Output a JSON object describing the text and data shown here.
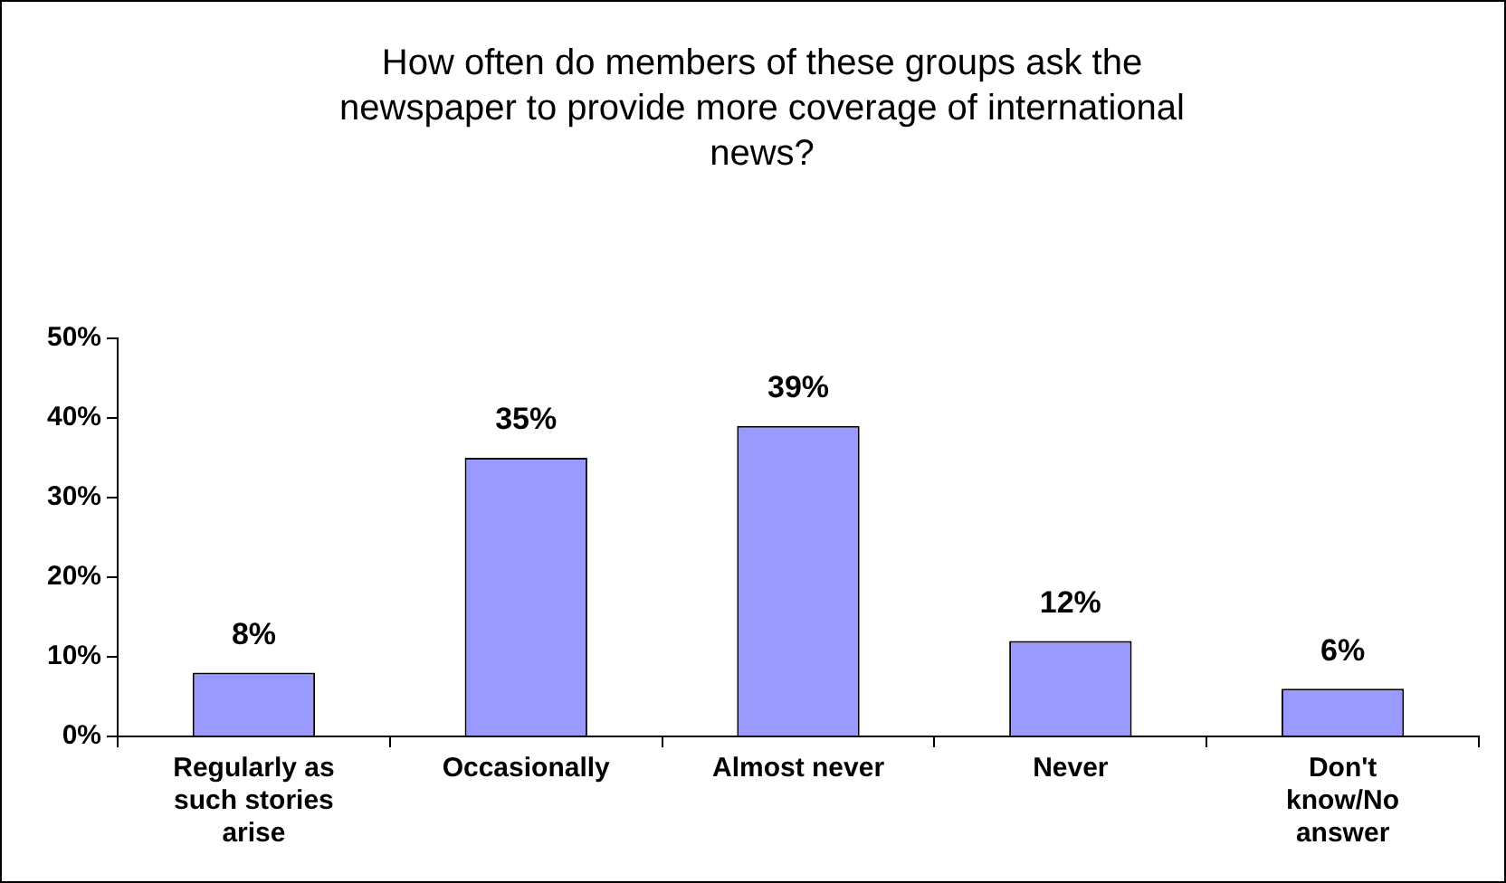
{
  "chart_data": {
    "type": "bar",
    "title": "How often do members of these groups ask the newspaper to provide more coverage of international news?",
    "categories": [
      "Regularly as such stories arise",
      "Occasionally",
      "Almost never",
      "Never",
      "Don't know/No answer"
    ],
    "values": [
      8,
      35,
      39,
      12,
      6
    ],
    "value_labels": [
      "8%",
      "35%",
      "39%",
      "12%",
      "6%"
    ],
    "color": "#9999ff",
    "ylim": [
      0,
      50
    ],
    "yticks": [
      {
        "value": 0,
        "label": "0%"
      },
      {
        "value": 10,
        "label": "10%"
      },
      {
        "value": 20,
        "label": "20%"
      },
      {
        "value": 30,
        "label": "30%"
      },
      {
        "value": 40,
        "label": "40%"
      },
      {
        "value": 50,
        "label": "50%"
      }
    ],
    "grid": false,
    "legend": false
  }
}
